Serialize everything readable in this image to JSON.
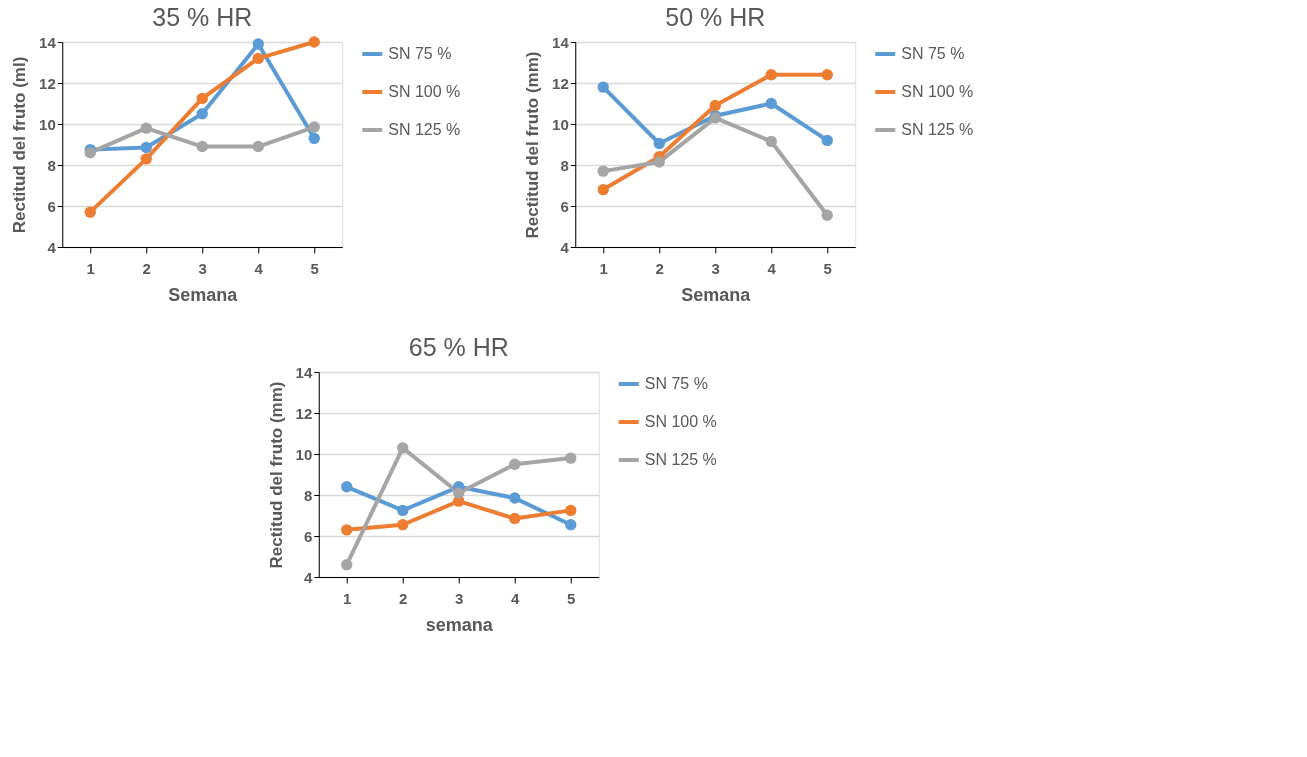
{
  "chart_data": [
    {
      "type": "line",
      "title": "35 % HR",
      "xlabel": "Semana",
      "ylabel": "Rectitud del fruto (ml)",
      "categories": [
        "1",
        "2",
        "3",
        "4",
        "5"
      ],
      "ylim": [
        4,
        14
      ],
      "yticks": [
        4,
        6,
        8,
        10,
        12,
        14
      ],
      "grid": "y",
      "legend": "right",
      "marker": "circle",
      "line_style": "solid",
      "series": [
        {
          "name": "SN 75 %",
          "color": "#5b9bd5",
          "values": [
            8.75,
            8.85,
            10.5,
            13.9,
            9.3
          ]
        },
        {
          "name": "SN 100 %",
          "color": "#ed7d31",
          "values": [
            5.7,
            8.3,
            11.25,
            13.2,
            14.0
          ]
        },
        {
          "name": "SN 125 %",
          "color": "#a5a5a5",
          "values": [
            8.6,
            9.8,
            8.9,
            8.9,
            9.85
          ]
        }
      ]
    },
    {
      "type": "line",
      "title": "50 % HR",
      "xlabel": "Semana",
      "ylabel": "Rectitud del fruto (mm)",
      "categories": [
        "1",
        "2",
        "3",
        "4",
        "5"
      ],
      "ylim": [
        4,
        14
      ],
      "yticks": [
        4,
        6,
        8,
        10,
        12,
        14
      ],
      "grid": "y",
      "legend": "right",
      "marker": "circle",
      "line_style": "solid",
      "series": [
        {
          "name": "SN 75 %",
          "color": "#5b9bd5",
          "values": [
            11.8,
            9.05,
            10.4,
            11.0,
            9.2
          ]
        },
        {
          "name": "SN 100 %",
          "color": "#ed7d31",
          "values": [
            6.8,
            8.4,
            10.9,
            12.4,
            12.4
          ]
        },
        {
          "name": "SN 125 %",
          "color": "#a5a5a5",
          "values": [
            7.7,
            8.15,
            10.3,
            9.15,
            5.55
          ]
        }
      ]
    },
    {
      "type": "line",
      "title": "65 % HR",
      "xlabel": "semana",
      "ylabel": "Rectitud del fruto (mm)",
      "categories": [
        "1",
        "2",
        "3",
        "4",
        "5"
      ],
      "ylim": [
        4,
        14
      ],
      "yticks": [
        4,
        6,
        8,
        10,
        12,
        14
      ],
      "grid": "y",
      "legend": "right",
      "marker": "circle",
      "line_style": "solid",
      "series": [
        {
          "name": "SN 75 %",
          "color": "#5b9bd5",
          "values": [
            8.4,
            7.25,
            8.4,
            7.85,
            6.55
          ]
        },
        {
          "name": "SN 100 %",
          "color": "#ed7d31",
          "values": [
            6.3,
            6.55,
            7.7,
            6.85,
            7.25
          ]
        },
        {
          "name": "SN 125 %",
          "color": "#a5a5a5",
          "values": [
            4.6,
            10.3,
            8.1,
            9.5,
            9.8
          ]
        }
      ]
    }
  ]
}
